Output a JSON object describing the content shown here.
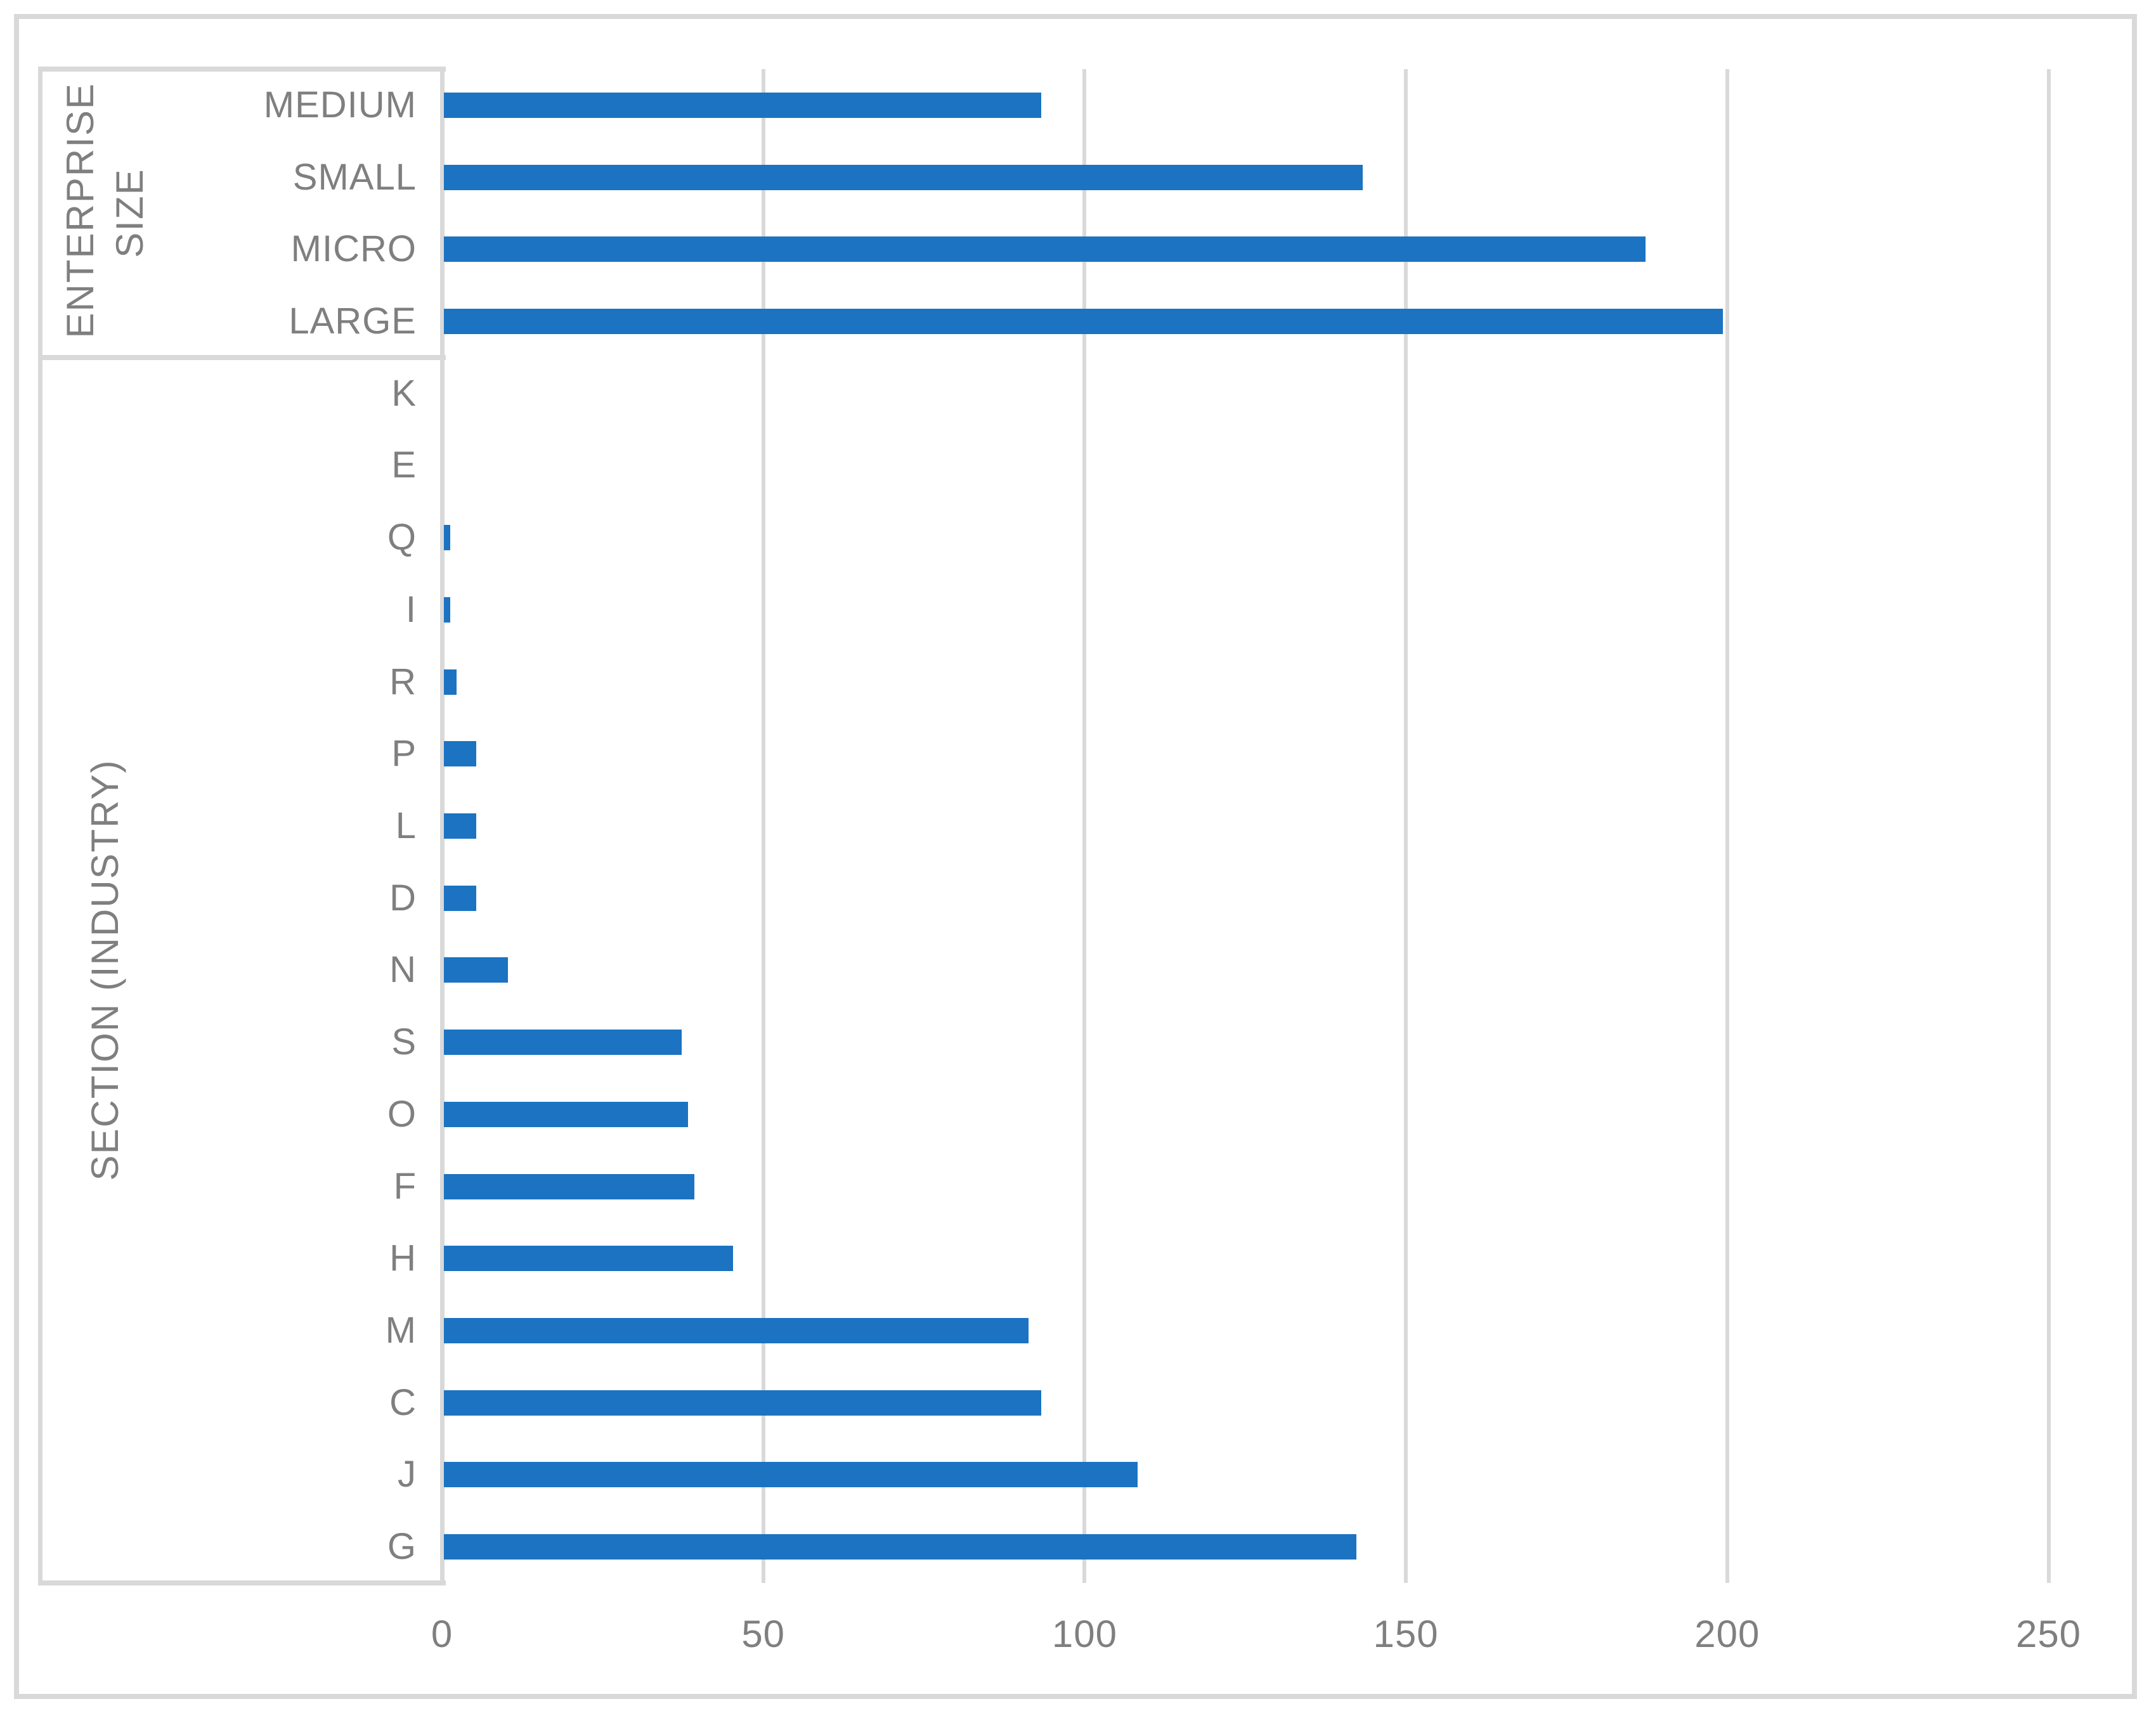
{
  "chart_data": {
    "type": "bar",
    "orientation": "horizontal",
    "title": "",
    "xlabel": "",
    "ylabel": "",
    "legend": false,
    "grid": true,
    "x_ticks": [
      0,
      50,
      100,
      150,
      200,
      250
    ],
    "xlim": [
      0,
      261
    ],
    "bar_color": "#1b73c2",
    "text_color": "#7f7f7f",
    "grid_color": "#d9d9d9",
    "groups": [
      {
        "label": "ENTERPRISE SIZE",
        "categories": [
          "MEDIUM",
          "SMALL",
          "MICRO",
          "LARGE"
        ],
        "values": [
          93,
          143,
          187,
          199
        ]
      },
      {
        "label": "SECTION (INDUSTRY)",
        "categories": [
          "K",
          "E",
          "Q",
          "I",
          "R",
          "P",
          "L",
          "D",
          "N",
          "S",
          "O",
          "F",
          "H",
          "M",
          "C",
          "J",
          "G"
        ],
        "values": [
          0,
          0,
          1,
          1,
          2,
          5,
          5,
          5,
          10,
          37,
          38,
          39,
          45,
          91,
          93,
          108,
          142
        ]
      }
    ]
  }
}
